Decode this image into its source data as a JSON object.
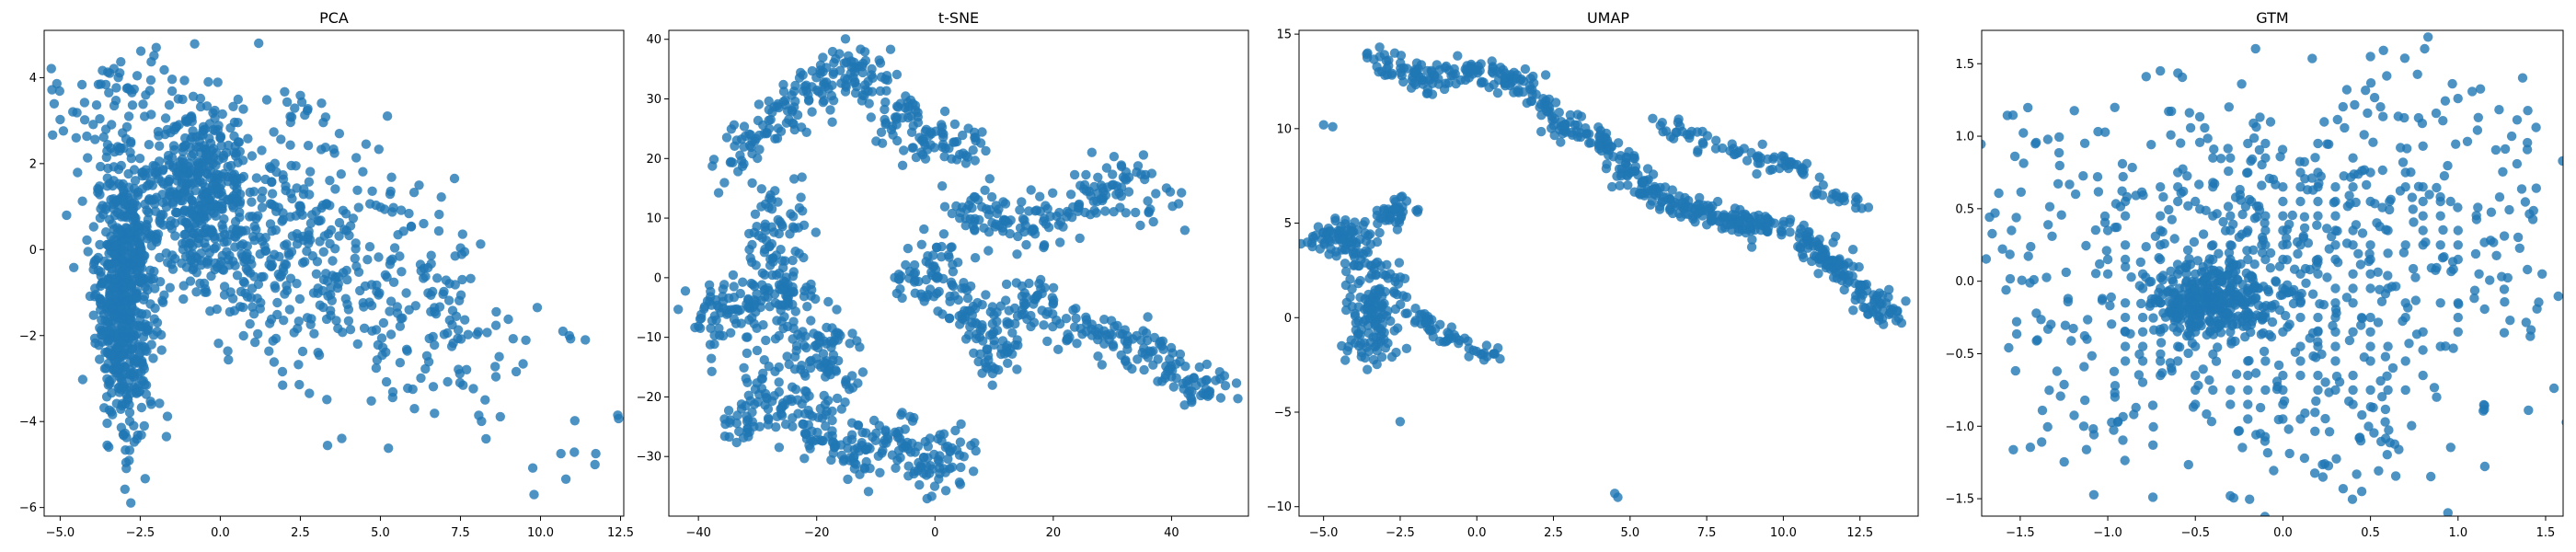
{
  "figure": {
    "background": "#ffffff",
    "point_color": "#1f77b4",
    "point_alpha": 0.8
  },
  "chart_data": [
    {
      "type": "scatter",
      "title": "PCA",
      "xlabel": "",
      "ylabel": "",
      "xlim": [
        -5.5,
        12.6
      ],
      "ylim": [
        -6.2,
        5.1
      ],
      "xticks": [
        -5.0,
        -2.5,
        0.0,
        2.5,
        5.0,
        7.5,
        10.0,
        12.5
      ],
      "xtick_labels": [
        "−5.0",
        "−2.5",
        "0.0",
        "2.5",
        "5.0",
        "7.5",
        "10.0",
        "12.5"
      ],
      "yticks": [
        -6,
        -4,
        -2,
        0,
        2,
        4
      ],
      "ytick_labels": [
        "−6",
        "−4",
        "−2",
        "0",
        "2",
        "4"
      ],
      "grid": false,
      "clusters": [
        {
          "cx": -3.0,
          "cy": -1.0,
          "sx": 0.45,
          "sy": 1.6,
          "n": 650
        },
        {
          "cx": -0.8,
          "cy": 1.3,
          "sx": 0.8,
          "sy": 1.1,
          "n": 380
        },
        {
          "cx": 1.5,
          "cy": 0.5,
          "sx": 1.6,
          "sy": 1.4,
          "n": 300
        },
        {
          "cx": 4.5,
          "cy": -0.5,
          "sx": 1.8,
          "sy": 1.2,
          "n": 160
        },
        {
          "cx": 7.5,
          "cy": -2.2,
          "sx": 1.4,
          "sy": 1.0,
          "n": 70
        },
        {
          "cx": 11.2,
          "cy": -4.5,
          "sx": 0.6,
          "sy": 0.4,
          "n": 8
        },
        {
          "cx": -3.5,
          "cy": 3.0,
          "sx": 1.2,
          "sy": 1.0,
          "n": 60
        }
      ],
      "outliers": [
        [
          10.9,
          -2.0
        ],
        [
          11.4,
          -2.1
        ],
        [
          9.8,
          -5.7
        ],
        [
          11.7,
          -5.0
        ],
        [
          -4.5,
          2.6
        ],
        [
          1.2,
          4.8
        ],
        [
          -2.0,
          4.7
        ],
        [
          8.3,
          -4.4
        ],
        [
          -4.8,
          0.8
        ],
        [
          10.7,
          -1.9
        ]
      ]
    },
    {
      "type": "scatter",
      "title": "t-SNE",
      "xlabel": "",
      "ylabel": "",
      "xlim": [
        -45,
        53
      ],
      "ylim": [
        -40,
        41.5
      ],
      "xticks": [
        -40,
        -20,
        0,
        20,
        40
      ],
      "xtick_labels": [
        "−40",
        "−20",
        "0",
        "20",
        "40"
      ],
      "yticks": [
        -30,
        -20,
        -10,
        0,
        10,
        20,
        30,
        40
      ],
      "ytick_labels": [
        "−30",
        "−20",
        "−10",
        "0",
        "10",
        "20",
        "30",
        "40"
      ],
      "grid": false,
      "paths": [
        {
          "points": [
            [
              -35,
              18
            ],
            [
              -30,
              24
            ],
            [
              -26,
              27
            ],
            [
              -22,
              30
            ],
            [
              -18,
              34
            ],
            [
              -12,
              35
            ],
            [
              -8,
              30
            ],
            [
              -4,
              24
            ],
            [
              2,
              22
            ],
            [
              6,
              22
            ]
          ],
          "n": 260,
          "s": 2.2
        },
        {
          "points": [
            [
              -40,
              -5
            ],
            [
              -35,
              -8
            ],
            [
              -30,
              -3
            ],
            [
              -24,
              -4
            ],
            [
              -28,
              8
            ],
            [
              -24,
              12
            ]
          ],
          "n": 200,
          "s": 2.5
        },
        {
          "points": [
            [
              -30,
              -18
            ],
            [
              -25,
              -22
            ],
            [
              -20,
              -25
            ],
            [
              -15,
              -30
            ],
            [
              -10,
              -28
            ],
            [
              -6,
              -26
            ],
            [
              0,
              -34
            ],
            [
              4,
              -27
            ]
          ],
          "n": 230,
          "s": 2.4
        },
        {
          "points": [
            [
              -25,
              -10
            ],
            [
              -22,
              -12
            ],
            [
              -18,
              -10
            ],
            [
              -16,
              -20
            ]
          ],
          "n": 90,
          "s": 2.5
        },
        {
          "points": [
            [
              -5,
              -2
            ],
            [
              0,
              3
            ],
            [
              4,
              -4
            ],
            [
              8,
              -8
            ],
            [
              10,
              -14
            ],
            [
              14,
              -6
            ],
            [
              18,
              -4
            ],
            [
              24,
              -8
            ],
            [
              30,
              -10
            ],
            [
              36,
              -12
            ],
            [
              42,
              -17
            ],
            [
              48,
              -20
            ]
          ],
          "n": 330,
          "s": 2.2
        },
        {
          "points": [
            [
              5,
              12
            ],
            [
              10,
              10
            ],
            [
              16,
              9
            ],
            [
              22,
              10
            ],
            [
              28,
              14
            ],
            [
              33,
              17
            ],
            [
              40,
              10
            ]
          ],
          "n": 170,
          "s": 2.2
        },
        {
          "points": [
            [
              -35,
              -25
            ],
            [
              -32,
              -20
            ],
            [
              -30,
              -30
            ]
          ],
          "n": 30,
          "s": 1.5
        }
      ]
    },
    {
      "type": "scatter",
      "title": "UMAP",
      "xlabel": "",
      "ylabel": "",
      "xlim": [
        -5.8,
        14.4
      ],
      "ylim": [
        -10.5,
        15.2
      ],
      "xticks": [
        -5.0,
        -2.5,
        0.0,
        2.5,
        5.0,
        7.5,
        10.0,
        12.5
      ],
      "xtick_labels": [
        "−5.0",
        "−2.5",
        "0.0",
        "2.5",
        "5.0",
        "7.5",
        "10.0",
        "12.5"
      ],
      "yticks": [
        -10,
        -5,
        0,
        5,
        10,
        15
      ],
      "ytick_labels": [
        "−10",
        "−5",
        "0",
        "5",
        "10",
        "15"
      ],
      "grid": false,
      "paths": [
        {
          "points": [
            [
              -3.5,
              13.7
            ],
            [
              -2.0,
              12.5
            ],
            [
              0.0,
              13.0
            ],
            [
              1.5,
              12.5
            ],
            [
              2.5,
              10.5
            ],
            [
              4.0,
              9.5
            ],
            [
              5.0,
              7.5
            ],
            [
              6.0,
              6.2
            ],
            [
              7.5,
              5.5
            ],
            [
              9.0,
              5.0
            ],
            [
              10.5,
              4.5
            ],
            [
              11.5,
              3.0
            ],
            [
              12.5,
              1.5
            ],
            [
              13.5,
              0.0
            ]
          ],
          "n": 560,
          "s": 0.35
        },
        {
          "points": [
            [
              -5.0,
              4.0
            ],
            [
              -4.0,
              4.5
            ],
            [
              -3.2,
              2.0
            ],
            [
              -3.5,
              0.0
            ],
            [
              -3.3,
              -2.0
            ]
          ],
          "n": 230,
          "s": 0.45
        },
        {
          "points": [
            [
              -3.5,
              5.0
            ],
            [
              -2.5,
              5.5
            ],
            [
              -2.2,
              6.0
            ]
          ],
          "n": 40,
          "s": 0.3
        },
        {
          "points": [
            [
              -2.0,
              0.2
            ],
            [
              -1.0,
              -1.0
            ],
            [
              0.8,
              -2.0
            ]
          ],
          "n": 55,
          "s": 0.2
        },
        {
          "points": [
            [
              6.0,
              10.2
            ],
            [
              8.0,
              9.0
            ],
            [
              10.0,
              8.2
            ],
            [
              10.8,
              7.5
            ]
          ],
          "n": 70,
          "s": 0.3
        },
        {
          "points": [
            [
              11.0,
              6.5
            ],
            [
              12.5,
              6.2
            ]
          ],
          "n": 20,
          "s": 0.2
        }
      ],
      "outliers": [
        [
          4.5,
          -9.3
        ],
        [
          4.6,
          -9.5
        ],
        [
          -5.0,
          10.2
        ],
        [
          -2.5,
          -5.5
        ],
        [
          -3.2,
          13.0
        ],
        [
          -4.7,
          10.1
        ]
      ]
    },
    {
      "type": "scatter",
      "title": "GTM",
      "xlabel": "",
      "ylabel": "",
      "xlim": [
        -1.72,
        1.6
      ],
      "ylim": [
        -1.62,
        1.73
      ],
      "xticks": [
        -1.5,
        -1.0,
        -0.5,
        0.0,
        0.5,
        1.0,
        1.5
      ],
      "xtick_labels": [
        "−1.5",
        "−1.0",
        "−0.5",
        "0.0",
        "0.5",
        "1.0",
        "1.5"
      ],
      "yticks": [
        -1.5,
        -1.0,
        -0.5,
        0.0,
        0.5,
        1.0,
        1.5
      ],
      "ytick_labels": [
        "−1.5",
        "−1.0",
        "−0.5",
        "0.0",
        "0.5",
        "1.0",
        "1.5"
      ],
      "grid": false,
      "grid_points": {
        "xmin": -1.1,
        "xmax": 1.05,
        "ymin": -0.95,
        "ymax": 0.95,
        "step": 0.1,
        "keep": 0.55
      },
      "clusters": [
        {
          "cx": -0.4,
          "cy": -0.15,
          "sx": 0.18,
          "sy": 0.12,
          "n": 320
        },
        {
          "cx": 0.0,
          "cy": 0.0,
          "sx": 0.7,
          "sy": 0.6,
          "n": 320
        },
        {
          "cx": -0.6,
          "cy": 0.7,
          "sx": 0.5,
          "sy": 0.5,
          "n": 80
        },
        {
          "cx": 0.7,
          "cy": 0.9,
          "sx": 0.4,
          "sy": 0.35,
          "n": 60
        },
        {
          "cx": -1.3,
          "cy": 0.1,
          "sx": 0.25,
          "sy": 0.5,
          "n": 40
        },
        {
          "cx": 0.3,
          "cy": -1.2,
          "sx": 0.4,
          "sy": 0.25,
          "n": 50
        },
        {
          "cx": 1.3,
          "cy": 0.5,
          "sx": 0.2,
          "sy": 0.5,
          "n": 30
        },
        {
          "cx": -1.2,
          "cy": -0.8,
          "sx": 0.3,
          "sy": 0.3,
          "n": 40
        }
      ],
      "outliers": [
        [
          -1.55,
          0.35
        ],
        [
          1.48,
          0.05
        ],
        [
          -0.3,
          -1.48
        ],
        [
          0.45,
          -1.45
        ],
        [
          0.5,
          1.55
        ],
        [
          -0.7,
          1.45
        ]
      ]
    }
  ]
}
